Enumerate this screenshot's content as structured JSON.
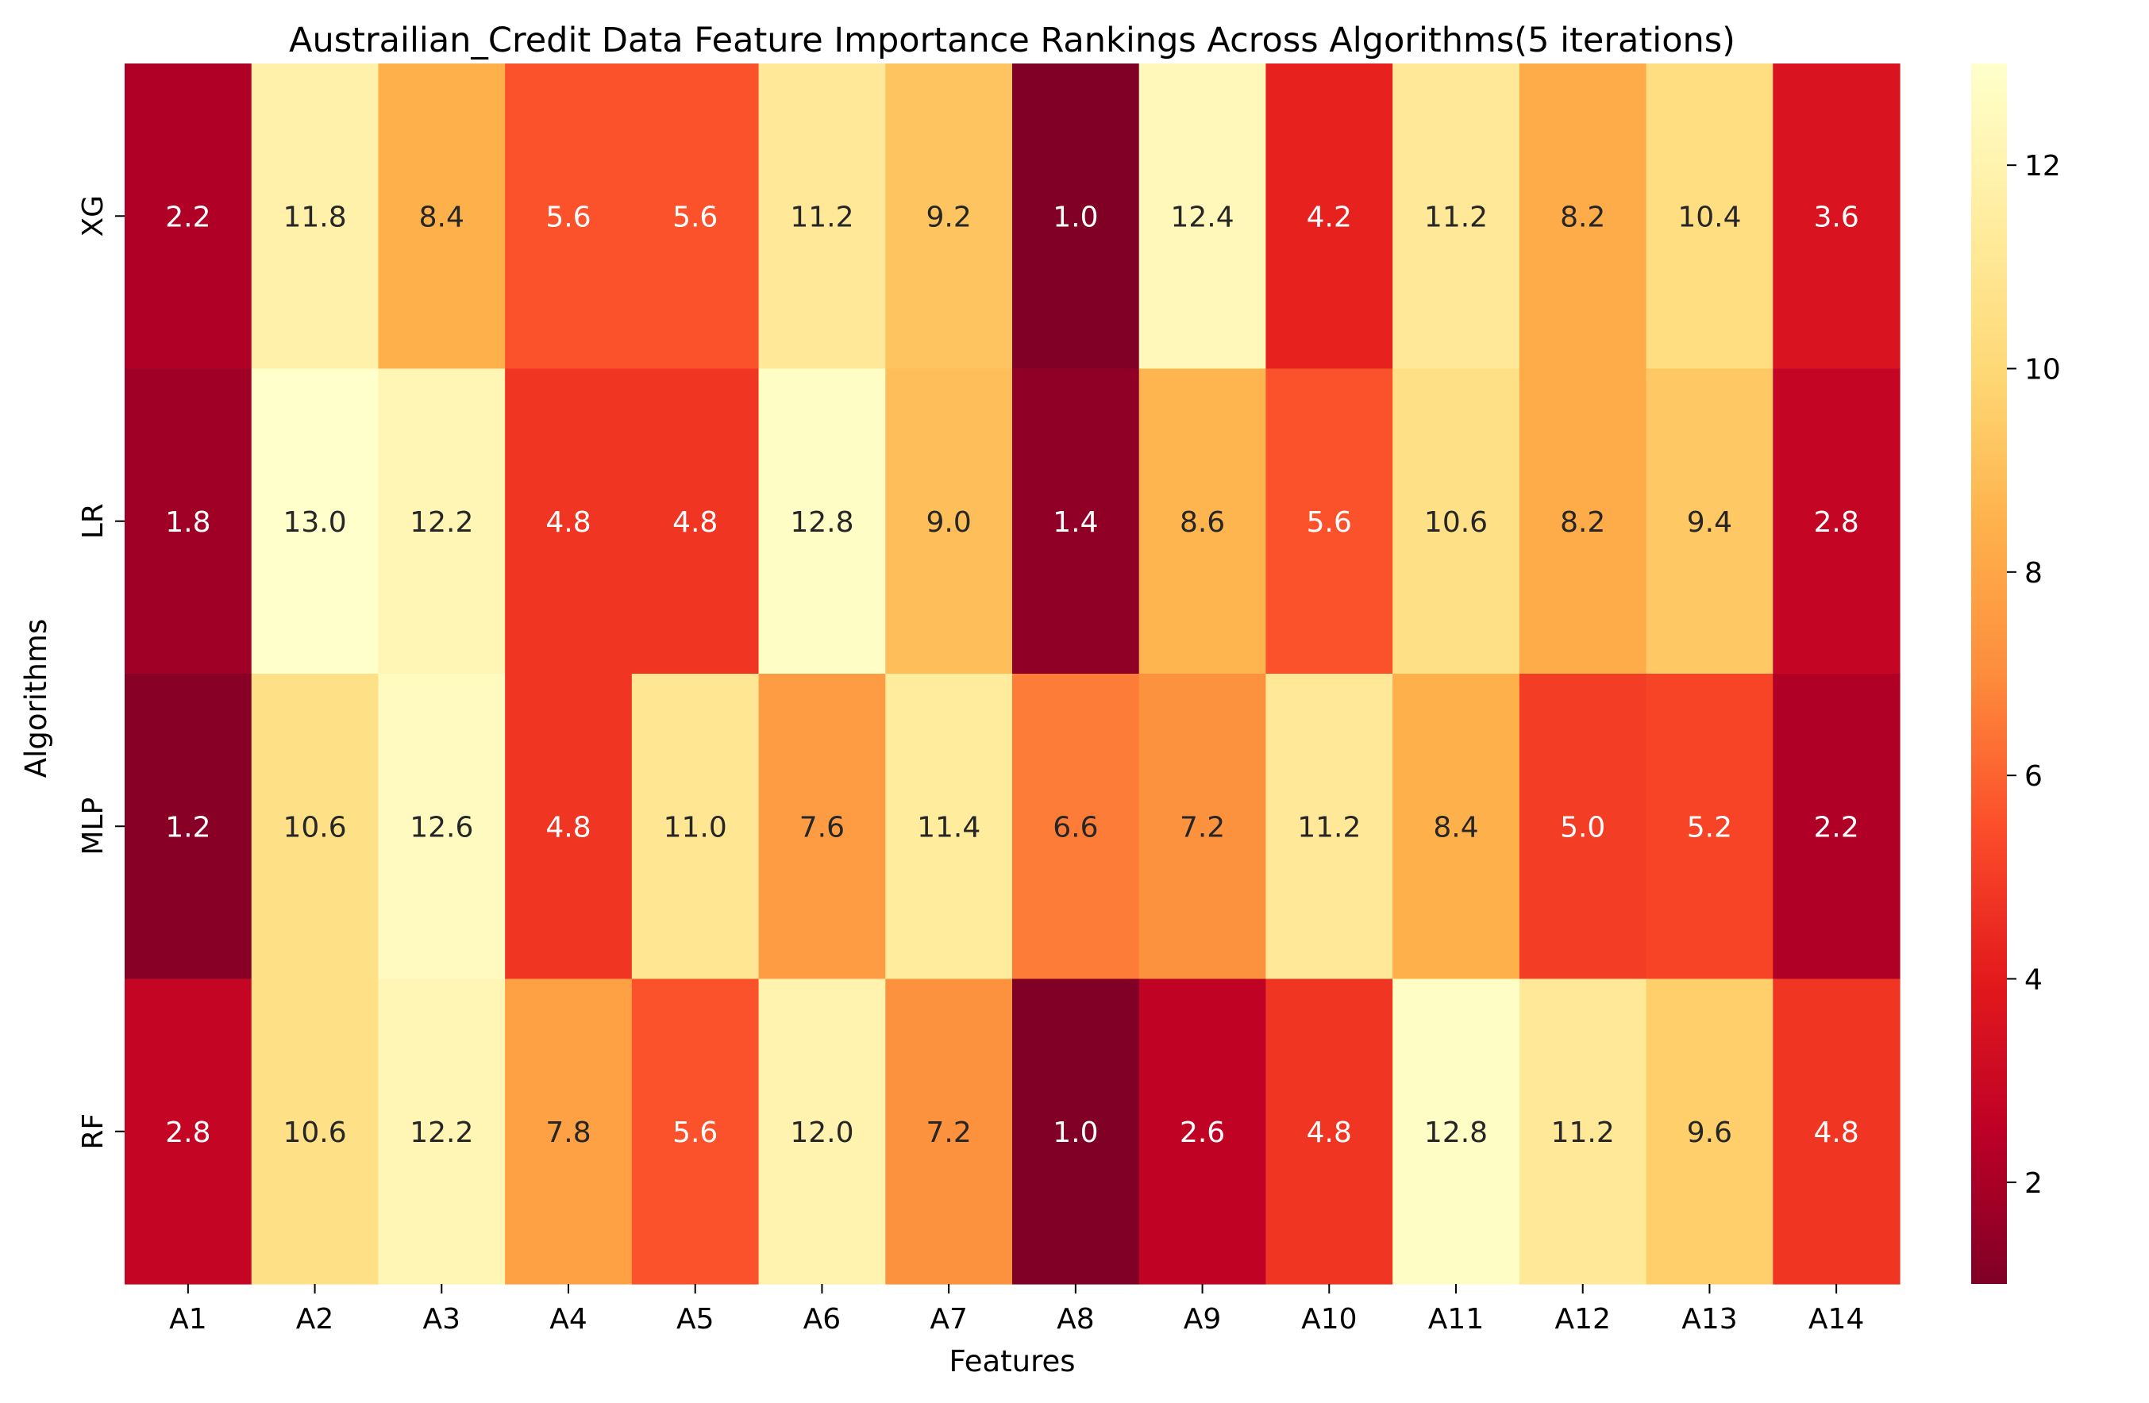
{
  "chart_data": {
    "type": "heatmap",
    "title": "Austrailian_Credit Data Feature Importance Rankings Across Algorithms(5 iterations)",
    "xlabel": "Features",
    "ylabel": "Algorithms",
    "x_categories": [
      "A1",
      "A2",
      "A3",
      "A4",
      "A5",
      "A6",
      "A7",
      "A8",
      "A9",
      "A10",
      "A11",
      "A12",
      "A13",
      "A14"
    ],
    "y_categories": [
      "XG",
      "LR",
      "MLP",
      "RF"
    ],
    "values": [
      [
        2.2,
        11.8,
        8.4,
        5.6,
        5.6,
        11.2,
        9.2,
        1.0,
        12.4,
        4.2,
        11.2,
        8.2,
        10.4,
        3.6
      ],
      [
        1.8,
        13.0,
        12.2,
        4.8,
        4.8,
        12.8,
        9.0,
        1.4,
        8.6,
        5.6,
        10.6,
        8.2,
        9.4,
        2.8
      ],
      [
        1.2,
        10.6,
        12.6,
        4.8,
        11.0,
        7.6,
        11.4,
        6.6,
        7.2,
        11.2,
        8.4,
        5.0,
        5.2,
        2.2
      ],
      [
        2.8,
        10.6,
        12.2,
        7.8,
        5.6,
        12.0,
        7.2,
        1.0,
        2.6,
        4.8,
        12.8,
        11.2,
        9.6,
        4.8
      ]
    ],
    "colormap": "YlOrRd_r",
    "vmin": 1.0,
    "vmax": 13.0,
    "colorbar_ticks": [
      2,
      4,
      6,
      8,
      10,
      12
    ],
    "colorbar_tick_labels": [
      "2",
      "4",
      "6",
      "8",
      "10",
      "12"
    ],
    "annotations": true,
    "grid": false,
    "legend": "colorbar-right"
  }
}
